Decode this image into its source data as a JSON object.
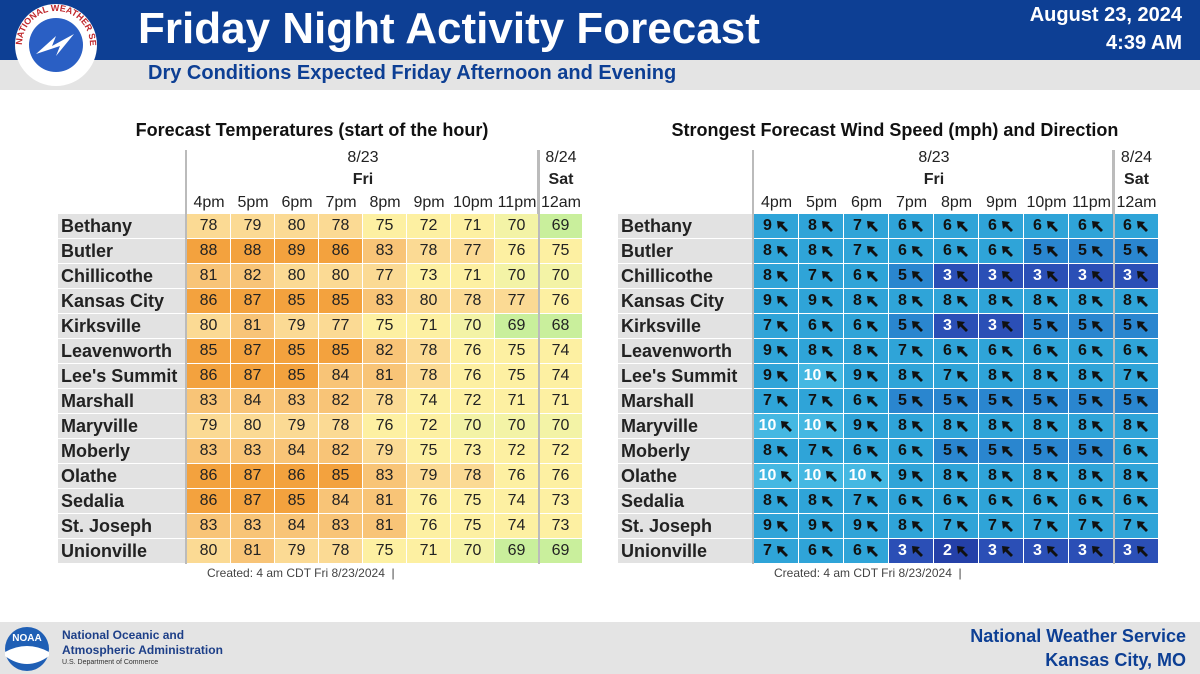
{
  "header": {
    "title": "Friday Night Activity Forecast",
    "subtitle": "Dry Conditions Expected Friday Afternoon and Evening",
    "date": "August 23, 2024",
    "time": "4:39 AM",
    "logo_text": "NATIONAL WEATHER SERVICE"
  },
  "days": [
    {
      "date": "8/23",
      "day": "Fri",
      "hours": [
        "4pm",
        "5pm",
        "6pm",
        "7pm",
        "8pm",
        "9pm",
        "10pm",
        "11pm"
      ]
    },
    {
      "date": "8/24",
      "day": "Sat",
      "hours": [
        "12am"
      ]
    }
  ],
  "temperature": {
    "title": "Forecast Temperatures (start of the hour)",
    "created": "Created: 4 am CDT Fri 8/23/2024  |",
    "rows": [
      {
        "name": "Bethany",
        "values": [
          78,
          79,
          80,
          78,
          75,
          72,
          71,
          70,
          69
        ]
      },
      {
        "name": "Butler",
        "values": [
          88,
          88,
          89,
          86,
          83,
          78,
          77,
          76,
          75
        ]
      },
      {
        "name": "Chillicothe",
        "values": [
          81,
          82,
          80,
          80,
          77,
          73,
          71,
          70,
          70
        ]
      },
      {
        "name": "Kansas City",
        "values": [
          86,
          87,
          85,
          85,
          83,
          80,
          78,
          77,
          76
        ]
      },
      {
        "name": "Kirksville",
        "values": [
          80,
          81,
          79,
          77,
          75,
          71,
          70,
          69,
          68
        ]
      },
      {
        "name": "Leavenworth",
        "values": [
          85,
          87,
          85,
          85,
          82,
          78,
          76,
          75,
          74
        ]
      },
      {
        "name": "Lee's Summit",
        "values": [
          86,
          87,
          85,
          84,
          81,
          78,
          76,
          75,
          74
        ]
      },
      {
        "name": "Marshall",
        "values": [
          83,
          84,
          83,
          82,
          78,
          74,
          72,
          71,
          71
        ]
      },
      {
        "name": "Maryville",
        "values": [
          79,
          80,
          79,
          78,
          76,
          72,
          70,
          70,
          70
        ]
      },
      {
        "name": "Moberly",
        "values": [
          83,
          83,
          84,
          82,
          79,
          75,
          73,
          72,
          72
        ]
      },
      {
        "name": "Olathe",
        "values": [
          86,
          87,
          86,
          85,
          83,
          79,
          78,
          76,
          76
        ]
      },
      {
        "name": "Sedalia",
        "values": [
          86,
          87,
          85,
          84,
          81,
          76,
          75,
          74,
          73
        ]
      },
      {
        "name": "St. Joseph",
        "values": [
          83,
          83,
          84,
          83,
          81,
          76,
          75,
          74,
          73
        ]
      },
      {
        "name": "Unionville",
        "values": [
          80,
          81,
          79,
          78,
          75,
          71,
          70,
          69,
          69
        ]
      }
    ]
  },
  "wind": {
    "title": "Strongest Forecast Wind Speed (mph) and Direction",
    "created": "Created: 4 am CDT Fri 8/23/2024  |",
    "rows": [
      {
        "name": "Bethany",
        "values": [
          9,
          8,
          7,
          6,
          6,
          6,
          6,
          6,
          6
        ]
      },
      {
        "name": "Butler",
        "values": [
          8,
          8,
          7,
          6,
          6,
          6,
          5,
          5,
          5
        ]
      },
      {
        "name": "Chillicothe",
        "values": [
          8,
          7,
          6,
          5,
          3,
          3,
          3,
          3,
          3
        ]
      },
      {
        "name": "Kansas City",
        "values": [
          9,
          9,
          8,
          8,
          8,
          8,
          8,
          8,
          8
        ]
      },
      {
        "name": "Kirksville",
        "values": [
          7,
          6,
          6,
          5,
          3,
          3,
          5,
          5,
          5
        ]
      },
      {
        "name": "Leavenworth",
        "values": [
          9,
          8,
          8,
          7,
          6,
          6,
          6,
          6,
          6
        ]
      },
      {
        "name": "Lee's Summit",
        "values": [
          9,
          10,
          9,
          8,
          7,
          8,
          8,
          8,
          7
        ]
      },
      {
        "name": "Marshall",
        "values": [
          7,
          7,
          6,
          5,
          5,
          5,
          5,
          5,
          5
        ]
      },
      {
        "name": "Maryville",
        "values": [
          10,
          10,
          9,
          8,
          8,
          8,
          8,
          8,
          8
        ]
      },
      {
        "name": "Moberly",
        "values": [
          8,
          7,
          6,
          6,
          5,
          5,
          5,
          5,
          6
        ]
      },
      {
        "name": "Olathe",
        "values": [
          10,
          10,
          10,
          9,
          8,
          8,
          8,
          8,
          8
        ]
      },
      {
        "name": "Sedalia",
        "values": [
          8,
          8,
          7,
          6,
          6,
          6,
          6,
          6,
          6
        ]
      },
      {
        "name": "St. Joseph",
        "values": [
          9,
          9,
          9,
          8,
          7,
          7,
          7,
          7,
          7
        ]
      },
      {
        "name": "Unionville",
        "values": [
          7,
          6,
          6,
          3,
          2,
          3,
          3,
          3,
          3
        ]
      }
    ]
  },
  "footer": {
    "noaa_logo": "NOAA",
    "noaa_line1": "National Oceanic and",
    "noaa_line2": "Atmospheric Administration",
    "noaa_line3": "U.S. Department of Commerce",
    "office_line1": "National Weather Service",
    "office_line2": "Kansas City, MO"
  }
}
